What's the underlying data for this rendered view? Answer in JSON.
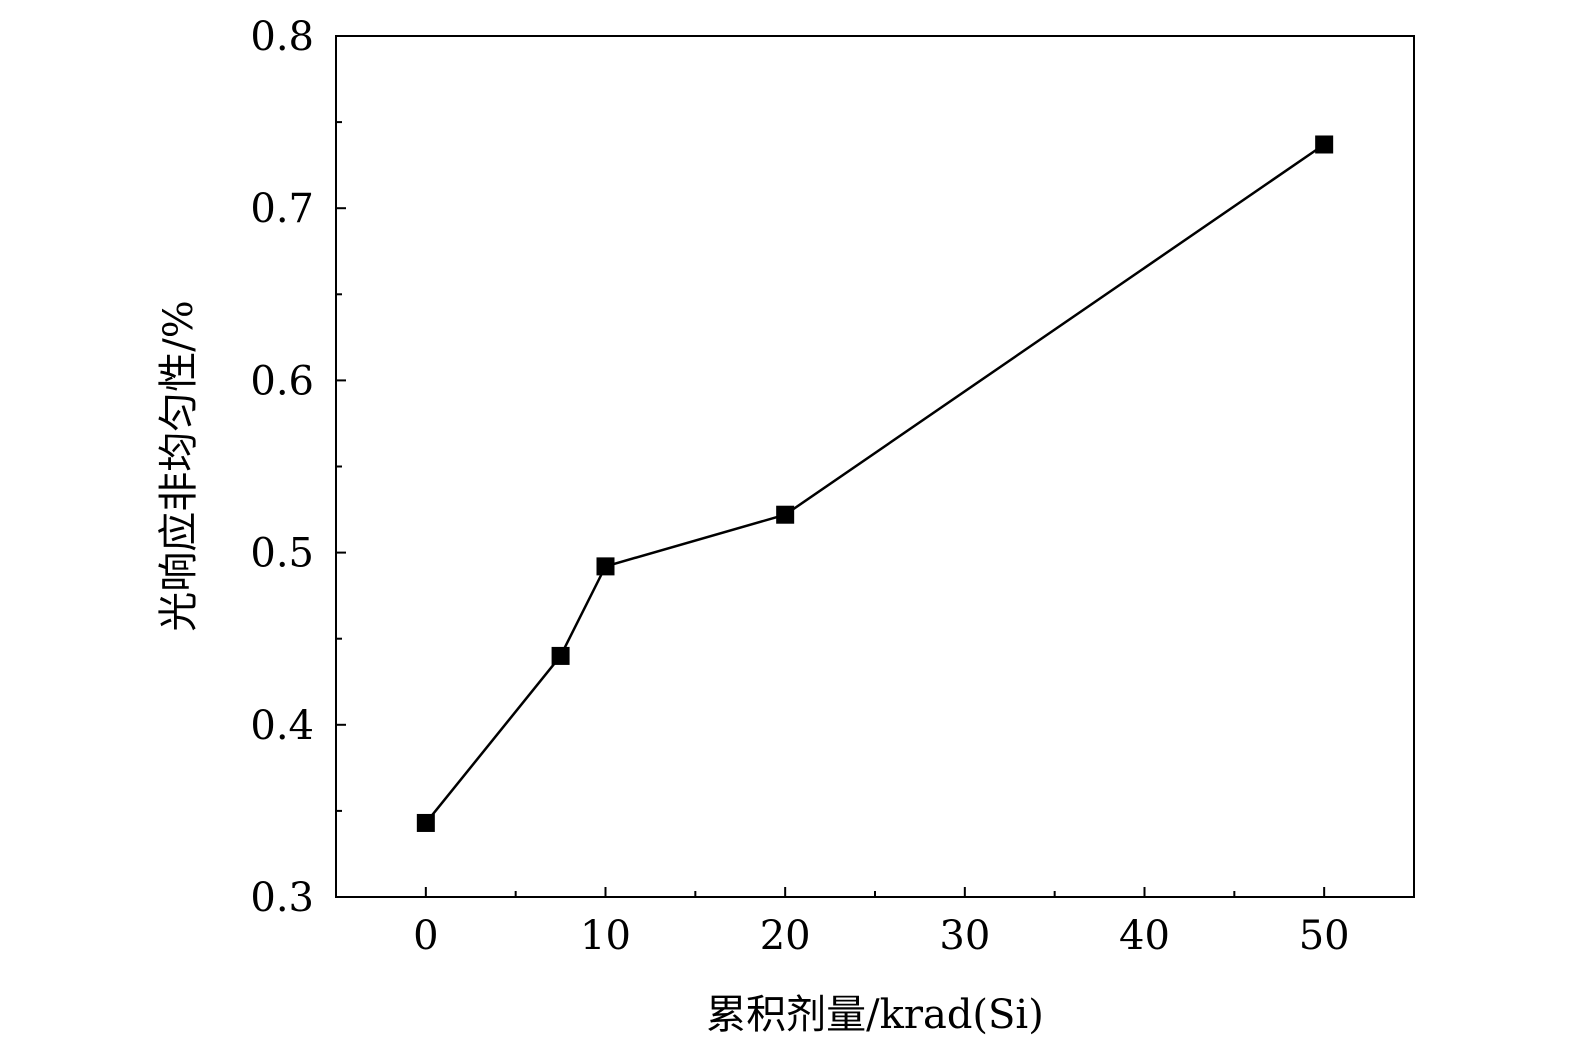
{
  "chart_data": {
    "type": "line",
    "title": "",
    "xlabel": "累积剂量/krad(Si)",
    "ylabel": "光响应非均匀性/%",
    "xlim": [
      -5,
      55
    ],
    "ylim": [
      0.3,
      0.8
    ],
    "x_ticks": [
      0,
      10,
      20,
      30,
      40,
      50
    ],
    "x_tick_labels": [
      "0",
      "10",
      "20",
      "30",
      "40",
      "50"
    ],
    "x_minor_ticks": [
      5,
      15,
      25,
      35,
      45
    ],
    "y_ticks": [
      0.3,
      0.4,
      0.5,
      0.6,
      0.7,
      0.8
    ],
    "y_tick_labels": [
      "0.3",
      "0.4",
      "0.5",
      "0.6",
      "0.7",
      "0.8"
    ],
    "y_minor_ticks": [
      0.35,
      0.45,
      0.55,
      0.65,
      0.75
    ],
    "grid": false,
    "marker": "square",
    "line_color": "#000000",
    "series": [
      {
        "x": [
          0,
          7.5,
          10,
          20,
          50
        ],
        "y": [
          0.343,
          0.44,
          0.492,
          0.522,
          0.737
        ]
      }
    ]
  }
}
